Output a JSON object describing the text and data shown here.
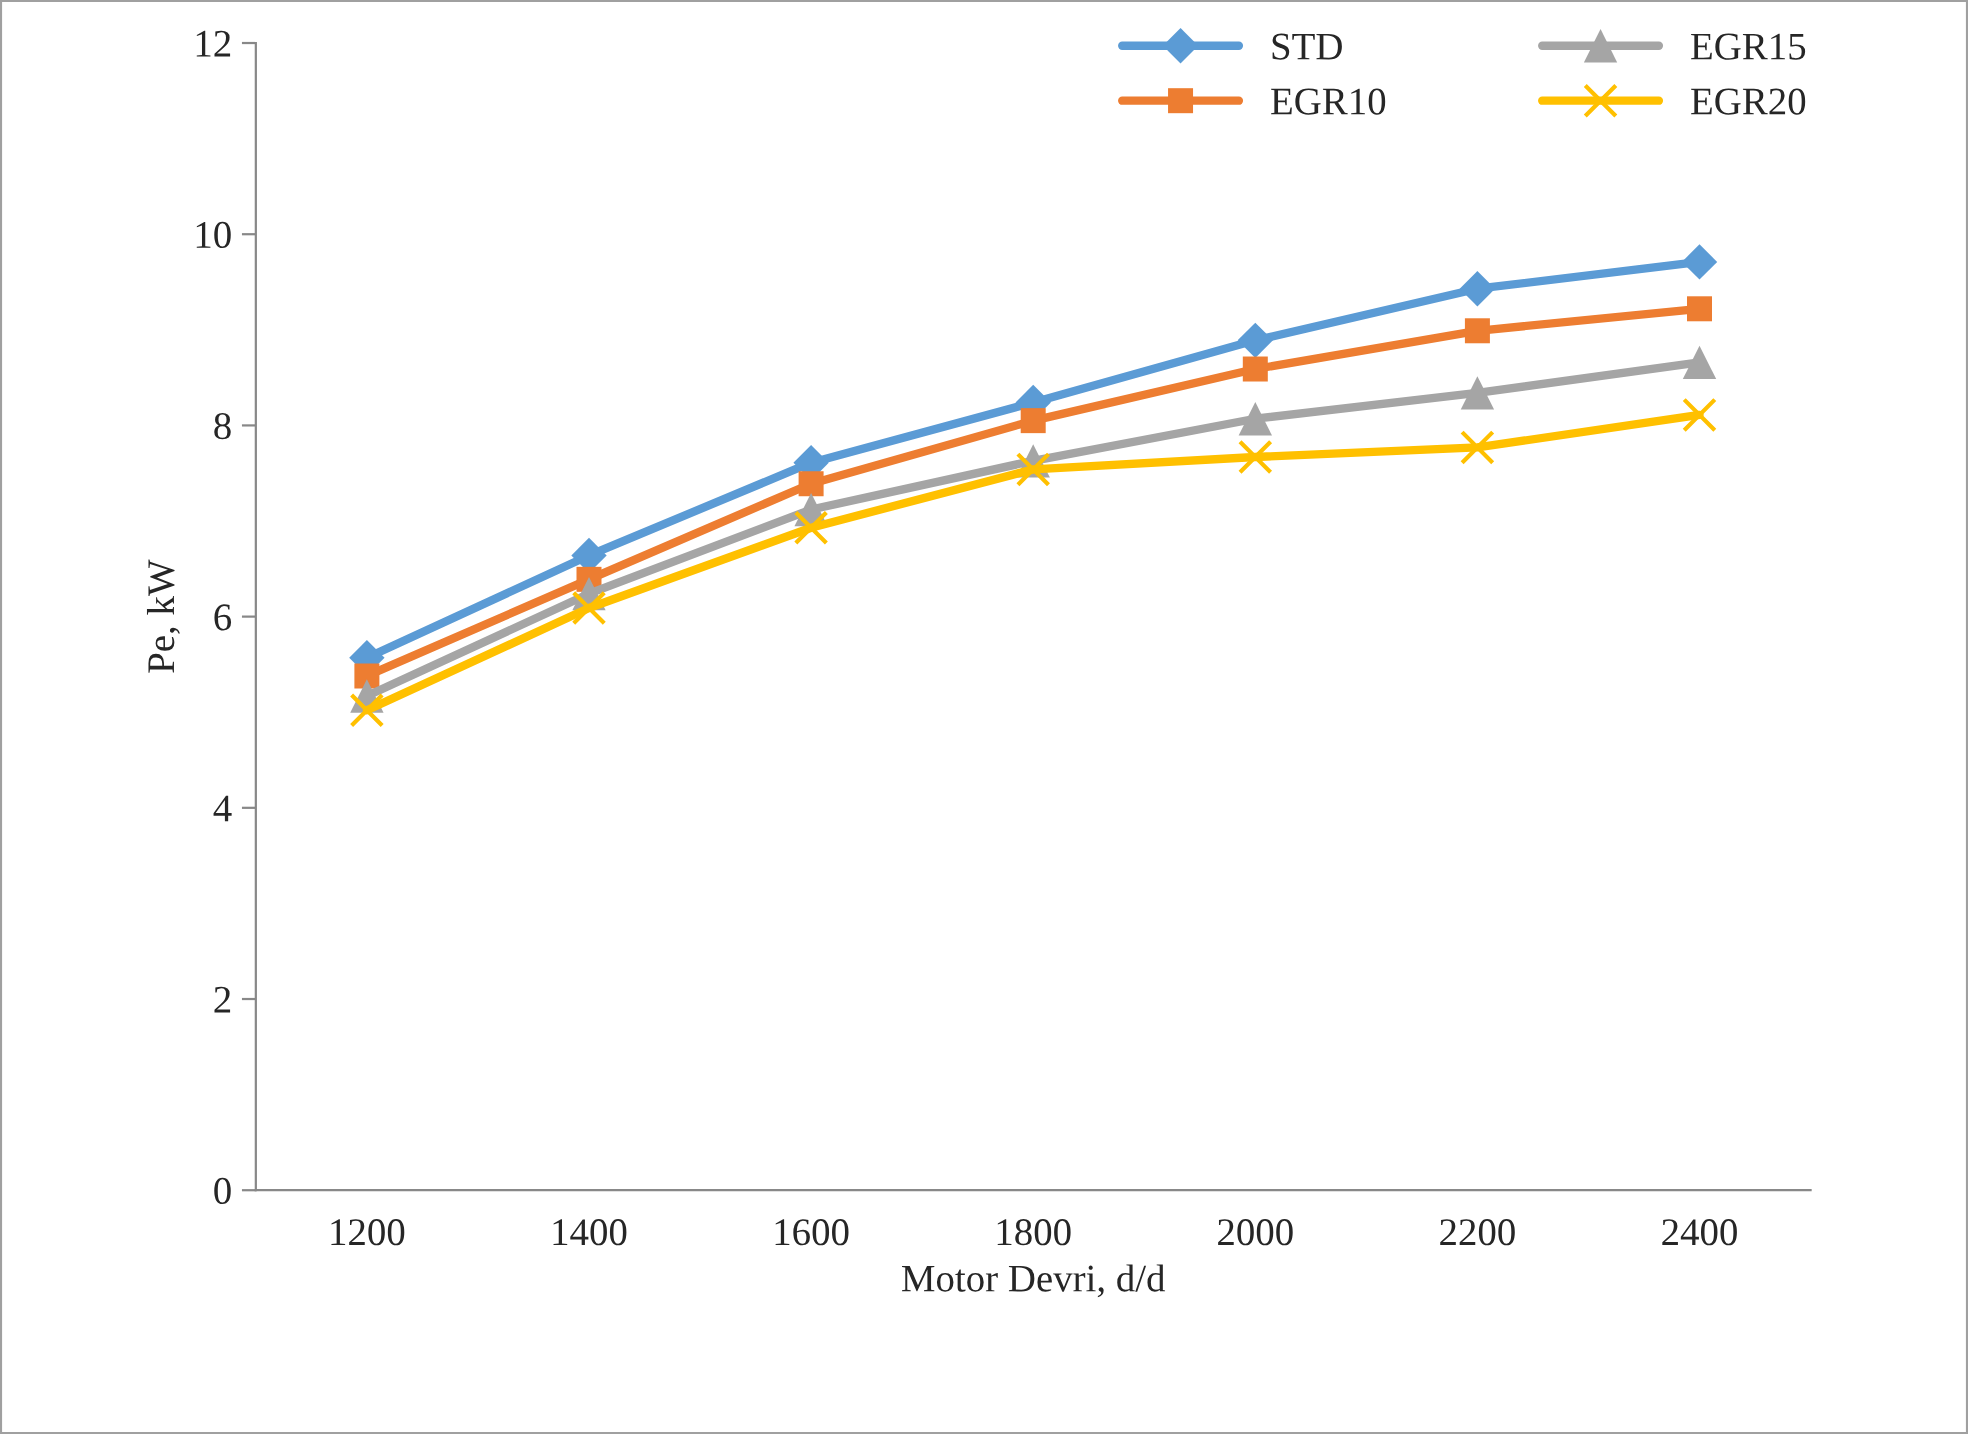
{
  "chart_data": {
    "type": "line",
    "xlabel": "Motor Devri, d/d",
    "ylabel": "Pe, kW",
    "categories": [
      "1200",
      "1400",
      "1600",
      "1800",
      "2000",
      "2200",
      "2400"
    ],
    "series": [
      {
        "name": "STD",
        "color": "#5b9bd5",
        "marker": "diamond",
        "values": [
          5.57,
          6.64,
          7.61,
          8.24,
          8.89,
          9.43,
          9.71
        ]
      },
      {
        "name": "EGR10",
        "color": "#ed7d31",
        "marker": "square",
        "values": [
          5.38,
          6.39,
          7.39,
          8.05,
          8.59,
          8.99,
          9.22
        ]
      },
      {
        "name": "EGR15",
        "color": "#a5a5a5",
        "marker": "triangle",
        "values": [
          5.17,
          6.24,
          7.12,
          7.63,
          8.07,
          8.34,
          8.66
        ]
      },
      {
        "name": "EGR20",
        "color": "#ffc000",
        "marker": "cross",
        "values": [
          5.02,
          6.09,
          6.93,
          7.54,
          7.67,
          7.77,
          8.11
        ]
      }
    ],
    "ylim": [
      0,
      12
    ],
    "yticks": [
      0,
      2,
      4,
      6,
      8,
      10,
      12
    ],
    "grid": false,
    "legend": "top right",
    "line_style": "solid"
  }
}
